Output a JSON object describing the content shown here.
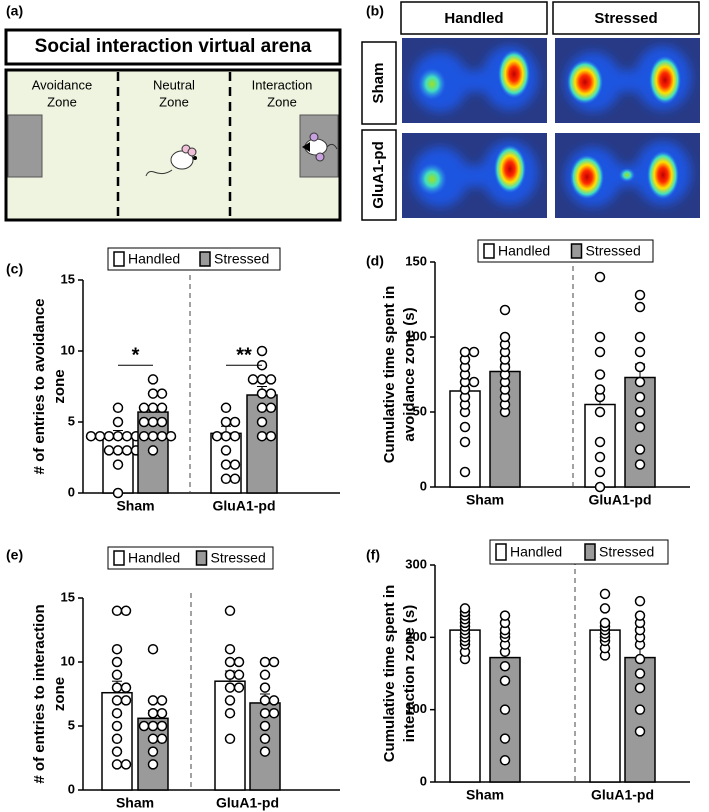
{
  "panel_a": {
    "label": "(a)",
    "title": "Social interaction virtual arena",
    "zones": [
      [
        "Avoidance",
        "Zone"
      ],
      [
        "Neutral",
        "Zone"
      ],
      [
        "Interaction",
        "Zone"
      ]
    ]
  },
  "panel_b": {
    "label": "(b)",
    "columns": [
      "Handled",
      "Stressed"
    ],
    "rows": [
      "Sham",
      "GluA1-pd"
    ]
  },
  "chart_data": [
    {
      "type": "bar",
      "label": "(c)",
      "ylabel": [
        "# of entries to avoidance",
        "zone"
      ],
      "categories": [
        "Sham",
        "GluA1-pd"
      ],
      "ylim": [
        0,
        15
      ],
      "yticks": [
        0,
        5,
        10,
        15
      ],
      "series": [
        {
          "name": "Handled",
          "color": "#ffffff",
          "values": [
            4.0,
            4.2
          ],
          "errors": [
            0.4,
            0.5
          ],
          "points": [
            [
              0,
              2,
              3,
              3,
              3,
              3,
              4,
              4,
              4,
              4,
              4,
              4,
              4,
              5,
              6
            ],
            [
              1,
              1,
              2,
              2,
              3,
              4,
              4,
              4,
              5,
              5,
              6
            ]
          ]
        },
        {
          "name": "Stressed",
          "color": "#9a9a9a",
          "values": [
            5.7,
            6.9
          ],
          "errors": [
            0.4,
            0.6
          ],
          "points": [
            [
              3,
              4,
              4,
              4,
              4,
              5,
              5,
              5,
              6,
              6,
              6,
              7,
              7,
              8
            ],
            [
              4,
              4,
              5,
              6,
              6,
              7,
              7,
              8,
              8,
              8,
              9,
              10
            ]
          ]
        }
      ],
      "annotations": [
        {
          "text": "*",
          "category": 0
        },
        {
          "text": "**",
          "category": 1
        }
      ]
    },
    {
      "type": "bar",
      "label": "(d)",
      "ylabel": [
        "Cumulative time spent in",
        "avoidance zone (s)"
      ],
      "categories": [
        "Sham",
        "GluA1-pd"
      ],
      "ylim": [
        0,
        150
      ],
      "yticks": [
        0,
        50,
        100,
        150
      ],
      "series": [
        {
          "name": "Handled",
          "color": "#ffffff",
          "values": [
            64,
            55
          ],
          "errors": [
            6,
            11
          ],
          "points": [
            [
              10,
              30,
              40,
              50,
              55,
              60,
              65,
              70,
              70,
              75,
              80,
              85,
              90,
              90
            ],
            [
              0,
              10,
              20,
              30,
              50,
              60,
              65,
              75,
              90,
              100,
              140
            ]
          ]
        },
        {
          "name": "Stressed",
          "color": "#9a9a9a",
          "values": [
            77,
            73
          ],
          "errors": [
            5,
            9
          ],
          "points": [
            [
              50,
              55,
              60,
              65,
              70,
              75,
              80,
              85,
              90,
              95,
              100,
              118
            ],
            [
              15,
              25,
              40,
              50,
              60,
              70,
              80,
              90,
              100,
              120,
              128
            ]
          ]
        }
      ]
    },
    {
      "type": "bar",
      "label": "(e)",
      "ylabel": [
        "# of entries to interaction",
        "zone"
      ],
      "categories": [
        "Sham",
        "GluA1-pd"
      ],
      "ylim": [
        0,
        15
      ],
      "yticks": [
        0,
        5,
        10,
        15
      ],
      "series": [
        {
          "name": "Handled",
          "color": "#ffffff",
          "values": [
            7.6,
            8.5
          ],
          "errors": [
            0.9,
            0.8
          ],
          "points": [
            [
              2,
              2,
              3,
              4,
              5,
              6,
              7,
              7,
              8,
              8,
              9,
              10,
              11,
              14,
              14
            ],
            [
              4,
              6,
              7,
              8,
              8,
              9,
              9,
              10,
              10,
              11,
              14
            ]
          ]
        },
        {
          "name": "Stressed",
          "color": "#9a9a9a",
          "values": [
            5.6,
            6.8
          ],
          "errors": [
            0.6,
            0.7
          ],
          "points": [
            [
              2,
              3,
              4,
              4,
              5,
              5,
              5,
              6,
              6,
              7,
              7,
              11
            ],
            [
              3,
              4,
              5,
              6,
              6,
              7,
              7,
              8,
              9,
              10,
              10
            ]
          ]
        }
      ]
    },
    {
      "type": "bar",
      "label": "(f)",
      "ylabel": [
        "Cumulative time spent in",
        "interaction zone (s)"
      ],
      "categories": [
        "Sham",
        "GluA1-pd"
      ],
      "ylim": [
        0,
        300
      ],
      "yticks": [
        0,
        100,
        200,
        300
      ],
      "series": [
        {
          "name": "Handled",
          "color": "#ffffff",
          "values": [
            210,
            210
          ],
          "errors": [
            6,
            8
          ],
          "points": [
            [
              170,
              180,
              190,
              195,
              200,
              205,
              210,
              215,
              220,
              225,
              230,
              235,
              240
            ],
            [
              175,
              185,
              195,
              200,
              205,
              210,
              215,
              220,
              240,
              260
            ]
          ]
        },
        {
          "name": "Stressed",
          "color": "#9a9a9a",
          "values": [
            172,
            172
          ],
          "errors": [
            17,
            16
          ],
          "points": [
            [
              30,
              60,
              100,
              140,
              160,
              180,
              190,
              200,
              205,
              210,
              220,
              230
            ],
            [
              70,
              100,
              130,
              150,
              170,
              190,
              200,
              210,
              220,
              230,
              250
            ]
          ]
        }
      ]
    }
  ]
}
